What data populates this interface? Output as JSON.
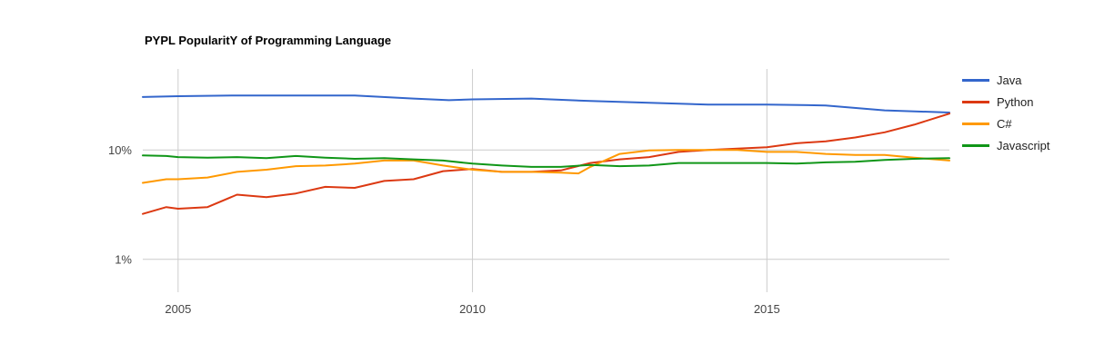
{
  "title": "PYPL PopularitY of Programming Language",
  "chart_data": {
    "type": "line",
    "title": "PYPL PopularitY of Programming Language",
    "xlabel": "",
    "ylabel": "",
    "x_range": [
      2004.4,
      2018.1
    ],
    "y_range": [
      0.5,
      55
    ],
    "y_scale": "log",
    "x_ticks": [
      {
        "value": 2005,
        "label": "2005"
      },
      {
        "value": 2010,
        "label": "2010"
      },
      {
        "value": 2015,
        "label": "2015"
      }
    ],
    "y_ticks": [
      {
        "value": 1,
        "label": "1%"
      },
      {
        "value": 10,
        "label": "10%"
      }
    ],
    "grid": true,
    "legend": "right",
    "series": [
      {
        "name": "Java",
        "color": "#3366cc",
        "x": [
          2004.4,
          2005,
          2006,
          2007,
          2008,
          2009,
          2009.6,
          2010,
          2011,
          2012,
          2013,
          2014,
          2015,
          2016,
          2017,
          2018.1
        ],
        "y": [
          30.5,
          31,
          31.5,
          31.5,
          31.5,
          29.5,
          28.5,
          29,
          29.5,
          28,
          27,
          26,
          26,
          25.5,
          23,
          22
        ]
      },
      {
        "name": "Python",
        "color": "#dc3912",
        "x": [
          2004.4,
          2004.8,
          2005,
          2005.5,
          2006,
          2006.5,
          2007,
          2007.5,
          2008,
          2008.5,
          2009,
          2009.5,
          2010,
          2010.5,
          2011,
          2011.5,
          2012,
          2012.5,
          2013,
          2013.5,
          2014,
          2014.5,
          2015,
          2015.5,
          2016,
          2016.5,
          2017,
          2017.5,
          2018.1
        ],
        "y": [
          2.6,
          3.0,
          2.9,
          3.0,
          3.9,
          3.7,
          4.0,
          4.6,
          4.5,
          5.2,
          5.4,
          6.4,
          6.7,
          6.3,
          6.3,
          6.5,
          7.6,
          8.2,
          8.6,
          9.6,
          10.0,
          10.3,
          10.6,
          11.5,
          12.0,
          13.0,
          14.5,
          17.0,
          21.5
        ]
      },
      {
        "name": "C#",
        "color": "#ff9900",
        "x": [
          2004.4,
          2004.8,
          2005,
          2005.5,
          2006,
          2006.5,
          2007,
          2007.5,
          2008,
          2008.5,
          2009,
          2009.5,
          2010,
          2010.5,
          2011,
          2011.5,
          2011.8,
          2012,
          2012.5,
          2013,
          2013.5,
          2014,
          2014.5,
          2015,
          2015.5,
          2016,
          2016.5,
          2017,
          2017.5,
          2018.1
        ],
        "y": [
          5.0,
          5.4,
          5.4,
          5.6,
          6.3,
          6.6,
          7.1,
          7.2,
          7.5,
          8.0,
          8.0,
          7.2,
          6.6,
          6.3,
          6.3,
          6.2,
          6.1,
          7.0,
          9.2,
          9.9,
          10.0,
          10.0,
          10.0,
          9.6,
          9.6,
          9.2,
          9.0,
          9.0,
          8.5,
          8.0
        ]
      },
      {
        "name": "Javascript",
        "color": "#109618",
        "x": [
          2004.4,
          2004.8,
          2005,
          2005.5,
          2006,
          2006.5,
          2007,
          2007.5,
          2008,
          2008.5,
          2009,
          2009.5,
          2010,
          2010.5,
          2011,
          2011.5,
          2012,
          2012.5,
          2013,
          2013.5,
          2014,
          2014.5,
          2015,
          2015.5,
          2016,
          2016.5,
          2017,
          2017.5,
          2018.1
        ],
        "y": [
          8.9,
          8.8,
          8.6,
          8.5,
          8.6,
          8.4,
          8.8,
          8.5,
          8.3,
          8.4,
          8.2,
          8.0,
          7.5,
          7.2,
          7.0,
          7.0,
          7.3,
          7.1,
          7.2,
          7.6,
          7.6,
          7.6,
          7.6,
          7.5,
          7.7,
          7.8,
          8.1,
          8.3,
          8.4
        ]
      }
    ]
  }
}
